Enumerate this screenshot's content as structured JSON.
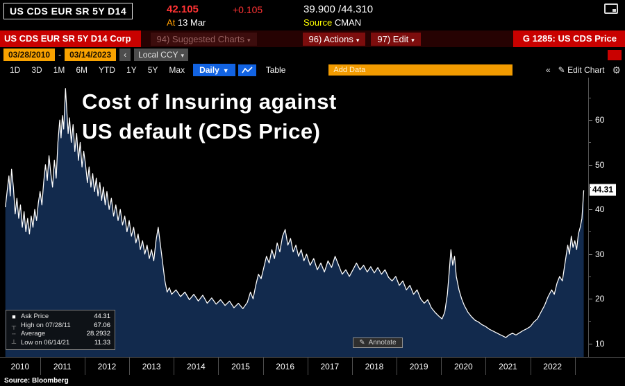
{
  "header": {
    "security": "US CDS EUR SR 5Y D14",
    "last": "42.105",
    "change": "+0.105",
    "bid_ask": "39.900 /44.310",
    "at_label": "At",
    "at_value": "13 Mar",
    "source_label": "Source",
    "source_value": "CMAN"
  },
  "function_bar": {
    "security": "US CDS EUR SR 5Y D14 Corp",
    "suggested_charts": "94) Suggested Charts",
    "actions": "96) Actions",
    "edit": "97) Edit",
    "chart_title": "G 1285: US CDS Price"
  },
  "range_bar": {
    "start_date": "03/28/2010",
    "separator": "-",
    "end_date": "03/14/2023",
    "currency": "Local CCY"
  },
  "toolbar": {
    "periods": [
      "1D",
      "3D",
      "1M",
      "6M",
      "YTD",
      "1Y",
      "5Y",
      "Max"
    ],
    "frequency": "Daily",
    "table": "Table",
    "add_data_placeholder": "Add Data",
    "edit_chart": "Edit Chart"
  },
  "icons": {
    "dropdown": "▾",
    "dropdown_big": "▼",
    "double_left": "«",
    "pencil": "✎",
    "gear": "⚙",
    "prev": "‹"
  },
  "chart": {
    "title_line1": "Cost of Insuring against",
    "title_line2": "US default (CDS Price)",
    "last_value_label": "44.31",
    "annotate": "Annotate",
    "source": "Source: Bloomberg",
    "legend": [
      {
        "glyph": "■",
        "label": "Ask Price",
        "value": "44.31"
      },
      {
        "glyph": "┬",
        "label": "High on 07/28/11",
        "value": "67.06"
      },
      {
        "glyph": "╌",
        "label": "Average",
        "value": "28.2932"
      },
      {
        "glyph": "┴",
        "label": "Low on 06/14/21",
        "value": "11.33"
      }
    ]
  },
  "colors": {
    "function_bar_red": "#c90100",
    "amber": "#f8a200",
    "blue": "#1263e2",
    "price_red": "#ff3334",
    "line": "#ffffff",
    "area_fill": "#122a4d"
  },
  "chart_data": {
    "type": "area",
    "title": "Cost of Insuring against US default (CDS Price)",
    "series_name": "Ask Price",
    "ylabel": "CDS Price",
    "xlim": [
      2010.1,
      2023.3
    ],
    "ylim": [
      7,
      69.5
    ],
    "yticks": [
      10,
      20,
      30,
      40,
      50,
      60
    ],
    "yminor": [
      15,
      25,
      35,
      45,
      55,
      65
    ],
    "xticks": [
      2010,
      2011,
      2012,
      2013,
      2014,
      2015,
      2016,
      2017,
      2018,
      2019,
      2020,
      2021,
      2022
    ],
    "last_value": 44.31,
    "high": {
      "date": "07/28/11",
      "value": 67.06
    },
    "average": 28.2932,
    "low": {
      "date": "06/14/21",
      "value": 11.33
    },
    "points": [
      [
        2010.22,
        40.5
      ],
      [
        2010.26,
        44
      ],
      [
        2010.3,
        47.5
      ],
      [
        2010.33,
        43
      ],
      [
        2010.36,
        49
      ],
      [
        2010.4,
        45
      ],
      [
        2010.44,
        39
      ],
      [
        2010.48,
        42.5
      ],
      [
        2010.52,
        38
      ],
      [
        2010.56,
        41
      ],
      [
        2010.6,
        36
      ],
      [
        2010.64,
        39.5
      ],
      [
        2010.68,
        35
      ],
      [
        2010.72,
        38
      ],
      [
        2010.76,
        34.5
      ],
      [
        2010.8,
        38.5
      ],
      [
        2010.84,
        36
      ],
      [
        2010.88,
        40
      ],
      [
        2010.92,
        37.5
      ],
      [
        2010.96,
        41.5
      ],
      [
        2011.0,
        44
      ],
      [
        2011.04,
        41
      ],
      [
        2011.08,
        46
      ],
      [
        2011.12,
        50
      ],
      [
        2011.16,
        46.5
      ],
      [
        2011.2,
        52
      ],
      [
        2011.24,
        48
      ],
      [
        2011.28,
        45
      ],
      [
        2011.32,
        51
      ],
      [
        2011.36,
        47
      ],
      [
        2011.4,
        55
      ],
      [
        2011.44,
        60
      ],
      [
        2011.47,
        56
      ],
      [
        2011.5,
        61
      ],
      [
        2011.53,
        58
      ],
      [
        2011.57,
        67.06
      ],
      [
        2011.6,
        62
      ],
      [
        2011.63,
        57
      ],
      [
        2011.66,
        60.5
      ],
      [
        2011.7,
        55
      ],
      [
        2011.74,
        59
      ],
      [
        2011.78,
        53
      ],
      [
        2011.82,
        57
      ],
      [
        2011.86,
        51
      ],
      [
        2011.9,
        55
      ],
      [
        2011.94,
        49.5
      ],
      [
        2011.98,
        53
      ],
      [
        2012.02,
        50
      ],
      [
        2012.06,
        46
      ],
      [
        2012.1,
        49.5
      ],
      [
        2012.14,
        45
      ],
      [
        2012.18,
        48
      ],
      [
        2012.22,
        44
      ],
      [
        2012.26,
        47
      ],
      [
        2012.3,
        43
      ],
      [
        2012.34,
        46
      ],
      [
        2012.38,
        42
      ],
      [
        2012.42,
        45
      ],
      [
        2012.46,
        41
      ],
      [
        2012.5,
        44
      ],
      [
        2012.55,
        40
      ],
      [
        2012.6,
        42.5
      ],
      [
        2012.65,
        38.5
      ],
      [
        2012.7,
        41
      ],
      [
        2012.75,
        37.5
      ],
      [
        2012.8,
        40
      ],
      [
        2012.85,
        36.5
      ],
      [
        2012.9,
        38.5
      ],
      [
        2012.95,
        35
      ],
      [
        2013.0,
        37.5
      ],
      [
        2013.05,
        34
      ],
      [
        2013.1,
        36
      ],
      [
        2013.15,
        32.5
      ],
      [
        2013.2,
        34.5
      ],
      [
        2013.25,
        31
      ],
      [
        2013.3,
        33
      ],
      [
        2013.35,
        30
      ],
      [
        2013.4,
        32
      ],
      [
        2013.45,
        29
      ],
      [
        2013.5,
        31
      ],
      [
        2013.55,
        28.5
      ],
      [
        2013.6,
        33
      ],
      [
        2013.65,
        36
      ],
      [
        2013.7,
        32
      ],
      [
        2013.75,
        28
      ],
      [
        2013.8,
        24
      ],
      [
        2013.85,
        21.5
      ],
      [
        2013.9,
        22.5
      ],
      [
        2013.95,
        21
      ],
      [
        2014.05,
        22
      ],
      [
        2014.15,
        20.5
      ],
      [
        2014.25,
        21.5
      ],
      [
        2014.35,
        19.8
      ],
      [
        2014.45,
        21
      ],
      [
        2014.55,
        19.5
      ],
      [
        2014.65,
        20.8
      ],
      [
        2014.75,
        19
      ],
      [
        2014.85,
        20.2
      ],
      [
        2014.95,
        18.8
      ],
      [
        2015.05,
        19.8
      ],
      [
        2015.15,
        18.5
      ],
      [
        2015.25,
        19.5
      ],
      [
        2015.35,
        18
      ],
      [
        2015.45,
        19
      ],
      [
        2015.55,
        17.8
      ],
      [
        2015.65,
        19.2
      ],
      [
        2015.72,
        21.5
      ],
      [
        2015.78,
        20
      ],
      [
        2015.84,
        23
      ],
      [
        2015.9,
        25.5
      ],
      [
        2015.96,
        24.5
      ],
      [
        2016.02,
        27
      ],
      [
        2016.08,
        29.5
      ],
      [
        2016.14,
        28
      ],
      [
        2016.2,
        31
      ],
      [
        2016.26,
        29
      ],
      [
        2016.32,
        32.5
      ],
      [
        2016.38,
        30.5
      ],
      [
        2016.44,
        34
      ],
      [
        2016.5,
        35.5
      ],
      [
        2016.56,
        32
      ],
      [
        2016.62,
        33.5
      ],
      [
        2016.68,
        30.5
      ],
      [
        2016.74,
        32
      ],
      [
        2016.8,
        29.5
      ],
      [
        2016.86,
        31
      ],
      [
        2016.92,
        28.5
      ],
      [
        2016.98,
        30
      ],
      [
        2017.06,
        27.5
      ],
      [
        2017.14,
        29
      ],
      [
        2017.22,
        26.5
      ],
      [
        2017.3,
        28
      ],
      [
        2017.38,
        26
      ],
      [
        2017.46,
        28.5
      ],
      [
        2017.54,
        27
      ],
      [
        2017.62,
        29.5
      ],
      [
        2017.7,
        27.5
      ],
      [
        2017.78,
        25.5
      ],
      [
        2017.86,
        26.5
      ],
      [
        2017.94,
        25
      ],
      [
        2018.02,
        26.5
      ],
      [
        2018.1,
        28
      ],
      [
        2018.18,
        26.5
      ],
      [
        2018.26,
        27.5
      ],
      [
        2018.34,
        26
      ],
      [
        2018.42,
        27.2
      ],
      [
        2018.5,
        25.8
      ],
      [
        2018.58,
        27
      ],
      [
        2018.66,
        25.5
      ],
      [
        2018.74,
        26.5
      ],
      [
        2018.82,
        24.8
      ],
      [
        2018.9,
        24
      ],
      [
        2018.98,
        25
      ],
      [
        2019.06,
        23
      ],
      [
        2019.14,
        24
      ],
      [
        2019.22,
        22
      ],
      [
        2019.3,
        23
      ],
      [
        2019.38,
        21
      ],
      [
        2019.46,
        22
      ],
      [
        2019.54,
        20
      ],
      [
        2019.62,
        19
      ],
      [
        2019.7,
        19.8
      ],
      [
        2019.78,
        18
      ],
      [
        2019.86,
        17
      ],
      [
        2019.94,
        16.2
      ],
      [
        2020.02,
        15.5
      ],
      [
        2020.08,
        17
      ],
      [
        2020.14,
        21
      ],
      [
        2020.18,
        26
      ],
      [
        2020.22,
        31
      ],
      [
        2020.26,
        27.5
      ],
      [
        2020.3,
        29.5
      ],
      [
        2020.34,
        25
      ],
      [
        2020.4,
        22
      ],
      [
        2020.46,
        20
      ],
      [
        2020.52,
        18.5
      ],
      [
        2020.6,
        17
      ],
      [
        2020.68,
        16
      ],
      [
        2020.76,
        15.2
      ],
      [
        2020.84,
        14.8
      ],
      [
        2020.92,
        14.2
      ],
      [
        2021.0,
        13.8
      ],
      [
        2021.08,
        13.2
      ],
      [
        2021.16,
        12.8
      ],
      [
        2021.24,
        12.4
      ],
      [
        2021.32,
        12
      ],
      [
        2021.4,
        11.6
      ],
      [
        2021.45,
        11.33
      ],
      [
        2021.52,
        11.9
      ],
      [
        2021.6,
        12.3
      ],
      [
        2021.68,
        11.9
      ],
      [
        2021.76,
        12.4
      ],
      [
        2021.84,
        12.9
      ],
      [
        2021.92,
        13.3
      ],
      [
        2022.0,
        13.8
      ],
      [
        2022.08,
        14.8
      ],
      [
        2022.16,
        15.5
      ],
      [
        2022.24,
        17
      ],
      [
        2022.32,
        18.5
      ],
      [
        2022.4,
        20.5
      ],
      [
        2022.48,
        22
      ],
      [
        2022.54,
        21
      ],
      [
        2022.6,
        23.5
      ],
      [
        2022.66,
        25
      ],
      [
        2022.72,
        24
      ],
      [
        2022.78,
        28
      ],
      [
        2022.84,
        32
      ],
      [
        2022.88,
        30
      ],
      [
        2022.92,
        34
      ],
      [
        2022.96,
        31.5
      ],
      [
        2023.0,
        33
      ],
      [
        2023.04,
        31
      ],
      [
        2023.08,
        34.5
      ],
      [
        2023.12,
        36
      ],
      [
        2023.16,
        38
      ],
      [
        2023.2,
        44.31
      ]
    ]
  }
}
